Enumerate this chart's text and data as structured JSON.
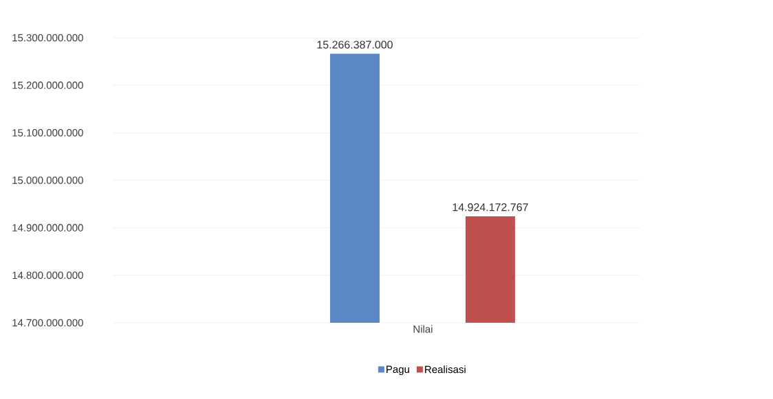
{
  "chart_data": {
    "type": "bar",
    "categories": [
      "Nilai"
    ],
    "series": [
      {
        "name": "Pagu",
        "color": "#5b87c5",
        "values": [
          15266387000
        ],
        "value_labels": [
          "15.266.387.000"
        ]
      },
      {
        "name": "Realisasi",
        "color": "#c0504d",
        "values": [
          14924172767
        ],
        "value_labels": [
          "14.924.172.767"
        ]
      }
    ],
    "ylim": [
      14700000000,
      15300000000
    ],
    "yticks": [
      {
        "value": 14700000000,
        "label": "14.700.000.000"
      },
      {
        "value": 14800000000,
        "label": "14.800.000.000"
      },
      {
        "value": 14900000000,
        "label": "14.900.000.000"
      },
      {
        "value": 15000000000,
        "label": "15.000.000.000"
      },
      {
        "value": 15100000000,
        "label": "15.100.000.000"
      },
      {
        "value": 15200000000,
        "label": "15.200.000.000"
      },
      {
        "value": 15300000000,
        "label": "15.300.000.000"
      }
    ],
    "grid": "y",
    "legend": "bottom"
  }
}
